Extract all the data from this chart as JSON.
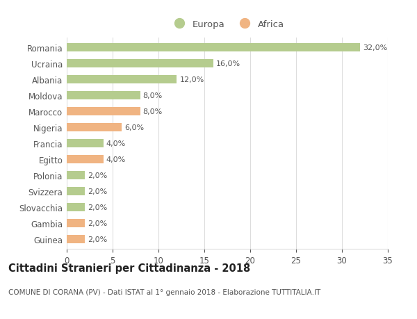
{
  "categories": [
    "Romania",
    "Ucraina",
    "Albania",
    "Moldova",
    "Marocco",
    "Nigeria",
    "Francia",
    "Egitto",
    "Polonia",
    "Svizzera",
    "Slovacchia",
    "Gambia",
    "Guinea"
  ],
  "values": [
    32.0,
    16.0,
    12.0,
    8.0,
    8.0,
    6.0,
    4.0,
    4.0,
    2.0,
    2.0,
    2.0,
    2.0,
    2.0
  ],
  "colors": [
    "#b5cc8e",
    "#b5cc8e",
    "#b5cc8e",
    "#b5cc8e",
    "#f0b482",
    "#f0b482",
    "#b5cc8e",
    "#f0b482",
    "#b5cc8e",
    "#b5cc8e",
    "#b5cc8e",
    "#f0b482",
    "#f0b482"
  ],
  "labels": [
    "32,0%",
    "16,0%",
    "12,0%",
    "8,0%",
    "8,0%",
    "6,0%",
    "4,0%",
    "4,0%",
    "2,0%",
    "2,0%",
    "2,0%",
    "2,0%",
    "2,0%"
  ],
  "xlim": [
    0,
    35
  ],
  "xticks": [
    0,
    5,
    10,
    15,
    20,
    25,
    30,
    35
  ],
  "title": "Cittadini Stranieri per Cittadinanza - 2018",
  "subtitle": "COMUNE DI CORANA (PV) - Dati ISTAT al 1° gennaio 2018 - Elaborazione TUTTITALIA.IT",
  "legend_europa_color": "#b5cc8e",
  "legend_africa_color": "#f0b482",
  "legend_europa_label": "Europa",
  "legend_africa_label": "Africa",
  "background_color": "#ffffff",
  "grid_color": "#dddddd",
  "bar_height": 0.55,
  "text_color": "#555555",
  "title_fontsize": 10.5,
  "subtitle_fontsize": 7.5,
  "label_fontsize": 8,
  "tick_fontsize": 8.5,
  "legend_fontsize": 9.5
}
